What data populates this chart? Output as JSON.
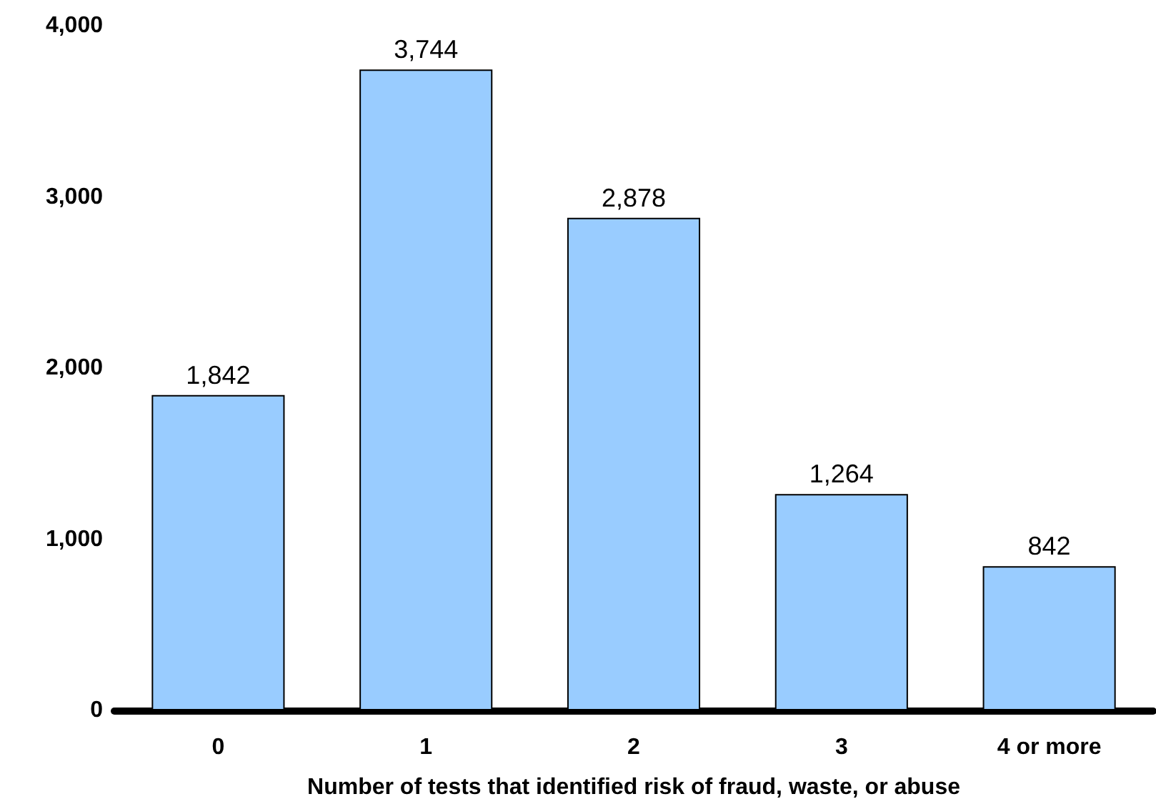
{
  "chart_data": {
    "type": "bar",
    "xlabel": "Number of tests that identified risk of fraud, waste, or abuse",
    "categories": [
      "0",
      "1",
      "2",
      "3",
      "4 or more"
    ],
    "values": [
      1842,
      3744,
      2878,
      1264,
      842
    ],
    "value_labels": [
      "1,842",
      "3,744",
      "2,878",
      "1,264",
      "842"
    ],
    "color": "#99ccff",
    "ylim": [
      0,
      4000
    ],
    "yticks": [
      {
        "value": 0,
        "label": "0"
      },
      {
        "value": 1000,
        "label": "1,000"
      },
      {
        "value": 2000,
        "label": "2,000"
      },
      {
        "value": 3000,
        "label": "3,000"
      },
      {
        "value": 4000,
        "label": "4,000"
      }
    ],
    "grid": false
  }
}
